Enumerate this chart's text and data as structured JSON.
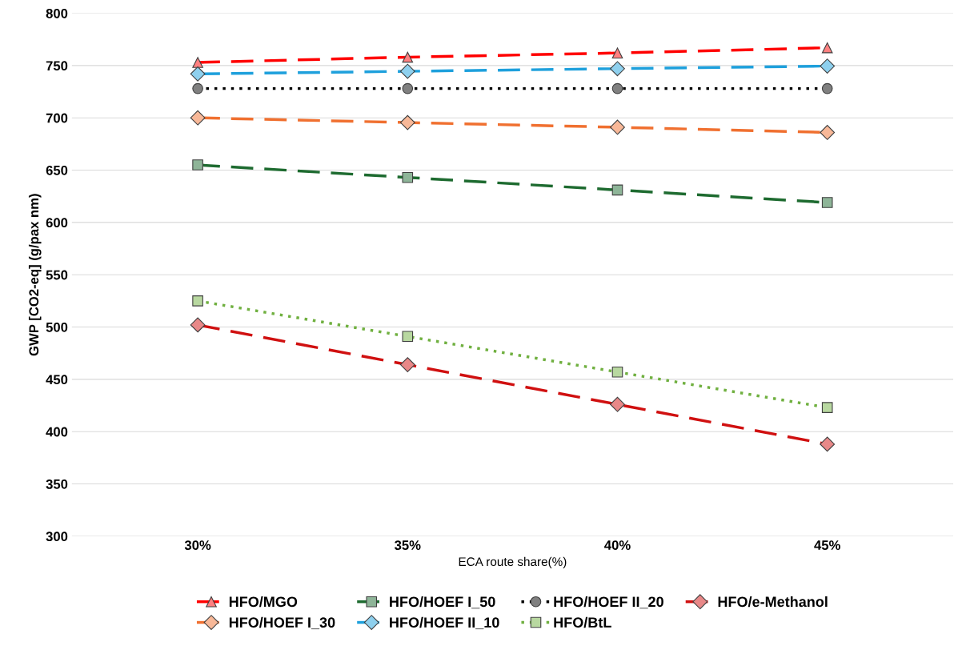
{
  "chart_data": {
    "type": "line",
    "xlabel": "ECA route share(%)",
    "ylabel": "GWP [CO2-eq] (g/pax nm)",
    "categories": [
      "30%",
      "35%",
      "40%",
      "45%"
    ],
    "ylim": [
      300,
      800
    ],
    "yticks": [
      300,
      350,
      400,
      450,
      500,
      550,
      600,
      650,
      700,
      750,
      800
    ],
    "grid": "y",
    "legend": "bottom",
    "series": [
      {
        "name": "HFO/MGO",
        "color": "#ff0000",
        "marker": "triangle",
        "line_style": "dashed",
        "values": [
          753,
          758,
          762,
          767
        ]
      },
      {
        "name": "HFO/HOEF I_30",
        "color": "#f07030",
        "marker": "diamond",
        "line_style": "dashed",
        "values": [
          700,
          695.5,
          691,
          686
        ]
      },
      {
        "name": "HFO/HOEF I_50",
        "color": "#1e6b30",
        "marker": "square",
        "line_style": "dashed",
        "values": [
          655,
          643,
          631,
          619
        ]
      },
      {
        "name": "HFO/HOEF II_10",
        "color": "#1ea0dc",
        "marker": "diamond",
        "line_style": "dashed",
        "values": [
          742,
          744.5,
          747,
          749.5
        ]
      },
      {
        "name": "HFO/HOEF II_20",
        "color": "#000000",
        "marker": "circle",
        "line_style": "dotted",
        "values": [
          728,
          728,
          728,
          728
        ]
      },
      {
        "name": "HFO/BtL",
        "color": "#70b040",
        "marker": "square",
        "line_style": "dotted",
        "values": [
          525,
          491,
          457,
          423
        ]
      },
      {
        "name": "HFO/e-Methanol",
        "color": "#d01010",
        "marker": "diamond",
        "line_style": "dashed",
        "values": [
          502,
          464,
          426,
          388
        ]
      }
    ]
  }
}
